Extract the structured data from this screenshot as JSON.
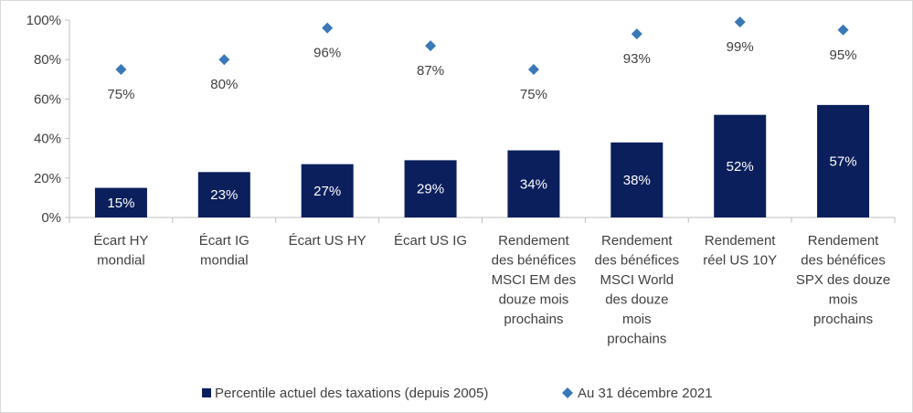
{
  "chart_data": {
    "type": "bar",
    "categories": [
      [
        "Écart HY",
        "mondial"
      ],
      [
        "Écart IG",
        "mondial"
      ],
      [
        "Écart US HY"
      ],
      [
        "Écart US IG"
      ],
      [
        "Rendement",
        "des bénéfices",
        "MSCI EM des",
        "douze mois",
        "prochains"
      ],
      [
        "Rendement",
        "des bénéfices",
        "MSCI World",
        "des douze",
        "mois",
        "prochains"
      ],
      [
        "Rendement",
        "réel US 10Y"
      ],
      [
        "Rendement",
        "des bénéfices",
        "SPX des douze",
        "mois",
        "prochains"
      ]
    ],
    "series": [
      {
        "name": "Percentile actuel des taxations (depuis 2005)",
        "kind": "bar",
        "color": "#0b1f5c",
        "values": [
          15,
          23,
          27,
          29,
          34,
          38,
          52,
          57
        ],
        "labels": [
          "15%",
          "23%",
          "27%",
          "29%",
          "34%",
          "38%",
          "52%",
          "57%"
        ]
      },
      {
        "name": "Au 31 décembre 2021",
        "kind": "scatter",
        "marker": "diamond",
        "color": "#3a78b8",
        "values": [
          75,
          80,
          96,
          87,
          75,
          93,
          99,
          95
        ],
        "labels": [
          "75%",
          "80%",
          "96%",
          "87%",
          "75%",
          "93%",
          "99%",
          "95%"
        ]
      }
    ],
    "ylim": [
      0,
      100
    ],
    "yticks": [
      0,
      20,
      40,
      60,
      80,
      100
    ],
    "ytick_labels": [
      "0%",
      "20%",
      "40%",
      "60%",
      "80%",
      "100%"
    ],
    "grid": false,
    "legend": "bottom"
  }
}
